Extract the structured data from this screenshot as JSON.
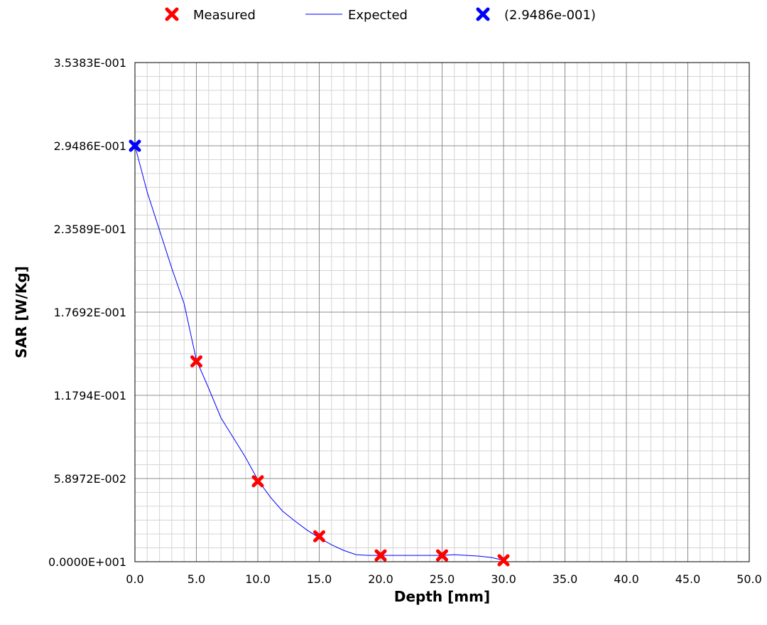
{
  "chart_data": {
    "type": "scatter",
    "xlabel": "Depth [mm]",
    "ylabel": "SAR [W/Kg]",
    "xlim": [
      0,
      50
    ],
    "ylim": [
      0,
      0.35383
    ],
    "x_ticks": [
      "0.0",
      "5.0",
      "10.0",
      "15.0",
      "20.0",
      "25.0",
      "30.0",
      "35.0",
      "40.0",
      "45.0",
      "50.0"
    ],
    "y_ticks": [
      "0.0000E+001",
      "5.8972E-002",
      "1.1794E-001",
      "1.7692E-001",
      "2.3589E-001",
      "2.9486E-001",
      "3.5383E-001"
    ],
    "grid": true,
    "legend_position": "top",
    "series": [
      {
        "name": "Measured",
        "kind": "marker",
        "color": "#ff0000",
        "points": [
          [
            5,
            0.142
          ],
          [
            10,
            0.057
          ],
          [
            15,
            0.018
          ],
          [
            20,
            0.0045
          ],
          [
            25,
            0.0045
          ],
          [
            30,
            0.001
          ]
        ]
      },
      {
        "name": "Expected",
        "kind": "line",
        "color": "#0000ff",
        "points": [
          [
            0,
            0.29486
          ],
          [
            1,
            0.262
          ],
          [
            2,
            0.235
          ],
          [
            3,
            0.208
          ],
          [
            4,
            0.183
          ],
          [
            5,
            0.143
          ],
          [
            6,
            0.123
          ],
          [
            7,
            0.102
          ],
          [
            8,
            0.088
          ],
          [
            9,
            0.074
          ],
          [
            10,
            0.058
          ],
          [
            11,
            0.046
          ],
          [
            12,
            0.036
          ],
          [
            13,
            0.029
          ],
          [
            14,
            0.0225
          ],
          [
            15,
            0.017
          ],
          [
            16,
            0.012
          ],
          [
            17,
            0.008
          ],
          [
            18,
            0.005
          ],
          [
            19,
            0.0045
          ],
          [
            20,
            0.0045
          ],
          [
            21,
            0.0045
          ],
          [
            22,
            0.0045
          ],
          [
            23,
            0.0045
          ],
          [
            24,
            0.0045
          ],
          [
            25,
            0.0045
          ],
          [
            26,
            0.005
          ],
          [
            27,
            0.0045
          ],
          [
            28,
            0.004
          ],
          [
            29,
            0.003
          ],
          [
            30,
            0.001
          ]
        ]
      },
      {
        "name": "(2.9486e-001)",
        "kind": "marker",
        "color": "#0000ff",
        "points": [
          [
            0,
            0.29486
          ]
        ]
      }
    ]
  }
}
